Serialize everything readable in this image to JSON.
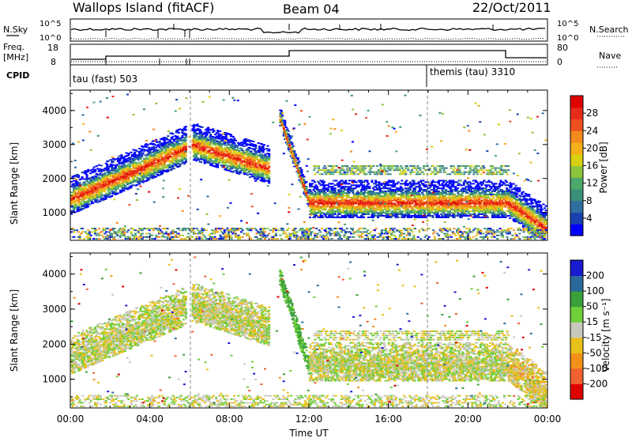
{
  "header": {
    "station": "Wallops Island (fitACF)",
    "beam": "Beam 04",
    "date": "22/Oct/2011"
  },
  "top_panels": {
    "nsky_label": "N.Sky",
    "nsky_ticks": [
      "10^5",
      "10^0"
    ],
    "nsearch_label": "N.Search",
    "nsearch_ticks": [
      "10^5",
      "10^0"
    ],
    "freq_label_line1": "Freq.",
    "freq_label_line2": "[MHz]",
    "freq_ticks": [
      "18",
      "8"
    ],
    "nave_label": "Nave",
    "nave_ticks": [
      "80",
      "0"
    ],
    "cpid_label": "CPID",
    "cpid_1": "tau (fast) 503",
    "cpid_2": "themis (tau) 3310"
  },
  "colors": {
    "power_scale": [
      "#0000ff",
      "#1a3fb0",
      "#2e6fa0",
      "#3a8f7a",
      "#4aa86a",
      "#8cc43c",
      "#d8d010",
      "#f3b01a",
      "#f38a1e",
      "#ef5020",
      "#e82a1a",
      "#e00000"
    ],
    "velocity_scale": [
      "#1a1ad0",
      "#2a6a9a",
      "#3aa03a",
      "#6fce3a",
      "#c8c8bc",
      "#e8c01a",
      "#f3901a",
      "#f06030",
      "#e00000"
    ]
  },
  "chart_data": [
    {
      "type": "heatmap",
      "title": "",
      "xlabel": "",
      "ylabel": "Slant Range [km]",
      "xlim": [
        "00:00",
        "24:00"
      ],
      "ylim": [
        180,
        4600
      ],
      "yticks": [
        "4000",
        "3000",
        "2000",
        "1000"
      ],
      "colorbar": {
        "label": "Power [dB]",
        "ticks": [
          "28",
          "24",
          "20",
          "16",
          "12",
          "8",
          "4"
        ],
        "range": [
          0,
          32
        ]
      },
      "echo_bands": [
        {
          "from_hour": 0.0,
          "to_hour": 5.8,
          "start_range_km": 1400,
          "end_range_km": 2900,
          "power_db": 26
        },
        {
          "from_hour": 6.1,
          "to_hour": 10.0,
          "start_range_km": 3000,
          "end_range_km": 2300,
          "power_db": 24
        },
        {
          "from_hour": 10.5,
          "to_hour": 12.0,
          "start_range_km": 3800,
          "end_range_km": 1300,
          "power_db": 28
        },
        {
          "from_hour": 12.0,
          "to_hour": 22.0,
          "start_range_km": 1300,
          "end_range_km": 1300,
          "power_db": 28
        },
        {
          "from_hour": 22.0,
          "to_hour": 24.0,
          "start_range_km": 1300,
          "end_range_km": 500,
          "power_db": 30
        }
      ]
    },
    {
      "type": "heatmap",
      "title": "",
      "xlabel": "Time UT",
      "ylabel": "Slant Range [km]",
      "xlim": [
        "00:00",
        "24:00"
      ],
      "ylim": [
        180,
        4600
      ],
      "xticks": [
        "00:00",
        "04:00",
        "08:00",
        "12:00",
        "16:00",
        "20:00",
        "00:00"
      ],
      "yticks": [
        "4000",
        "3000",
        "2000",
        "1000"
      ],
      "colorbar": {
        "label": "Velocity [m s⁻¹]",
        "ticks": [
          "200",
          "100",
          "50",
          "15",
          "-15",
          "-50",
          "-100",
          "-200"
        ],
        "range": [
          -250,
          250
        ]
      },
      "echo_bands": [
        {
          "from_hour": 0.0,
          "to_hour": 5.8,
          "start_range_km": 1600,
          "end_range_km": 3000,
          "velocity_ms": 0
        },
        {
          "from_hour": 6.1,
          "to_hour": 10.0,
          "start_range_km": 3100,
          "end_range_km": 2400,
          "velocity_ms": 0
        },
        {
          "from_hour": 10.5,
          "to_hour": 12.0,
          "start_range_km": 3900,
          "end_range_km": 1300,
          "velocity_ms": 60
        },
        {
          "from_hour": 12.0,
          "to_hour": 22.0,
          "start_range_km": 1400,
          "end_range_km": 1400,
          "velocity_ms": 0
        },
        {
          "from_hour": 22.0,
          "to_hour": 24.0,
          "start_range_km": 1400,
          "end_range_km": 500,
          "velocity_ms": -20
        }
      ]
    }
  ]
}
